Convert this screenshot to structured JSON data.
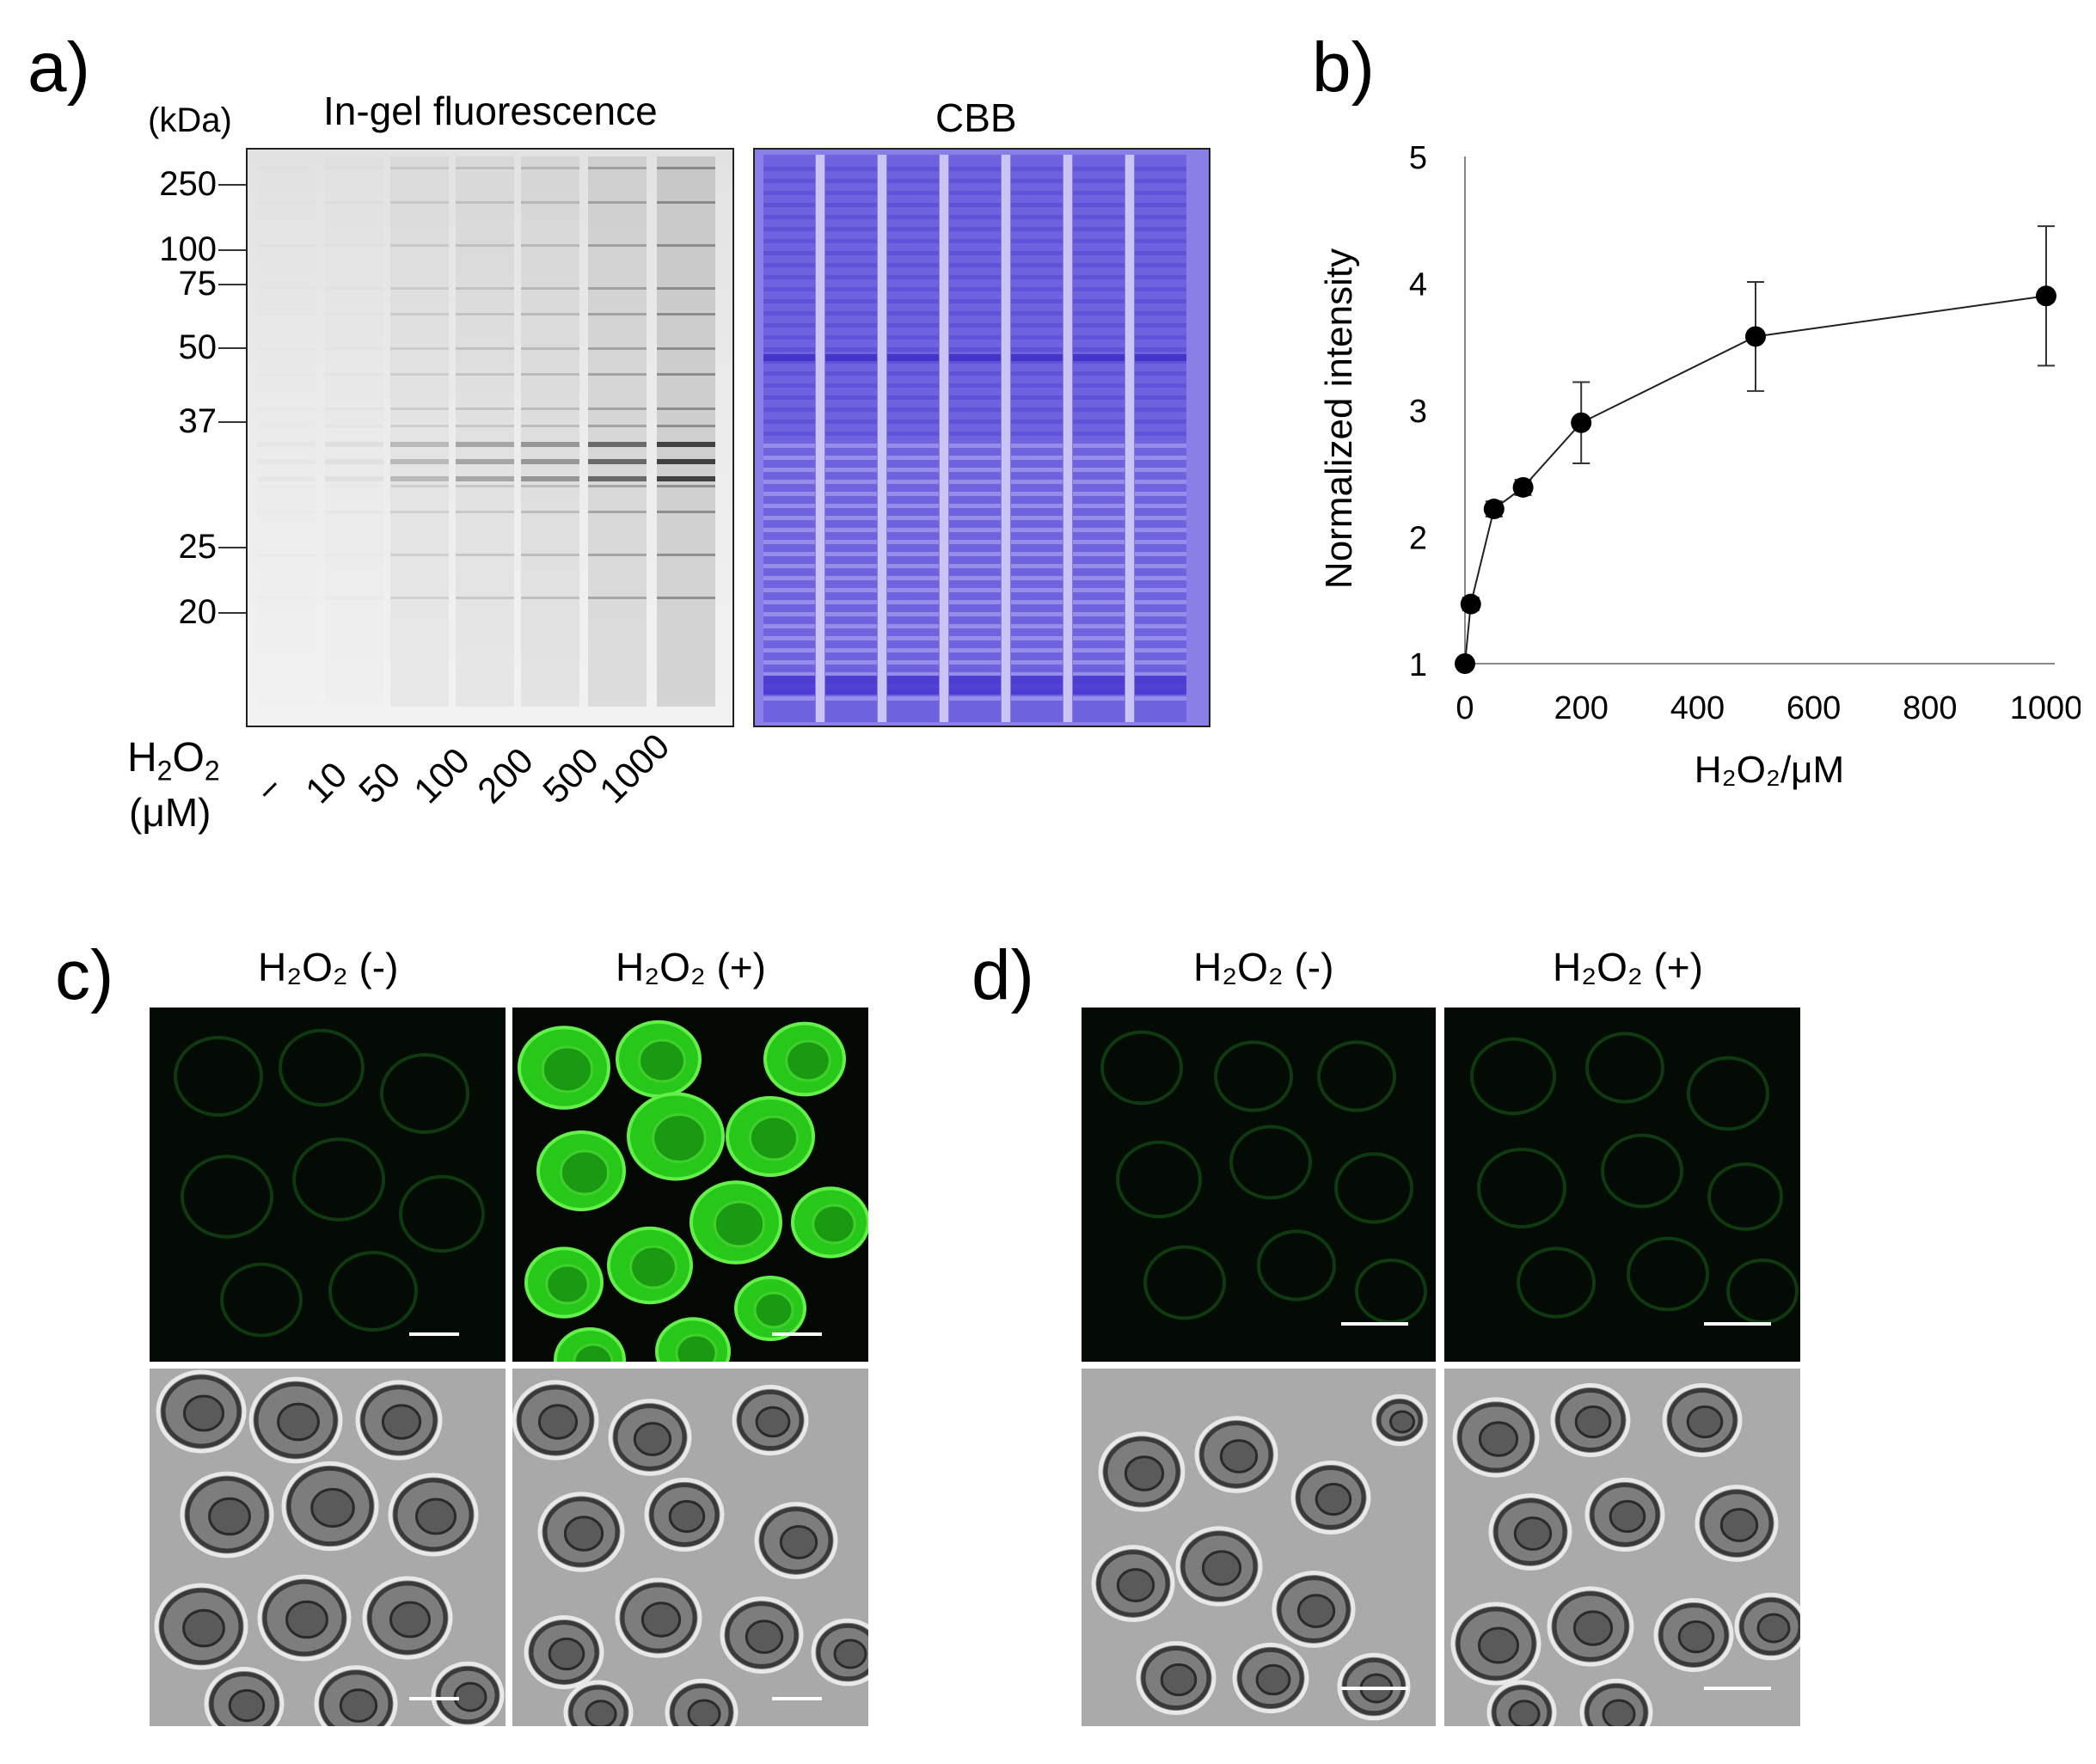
{
  "panel_a": {
    "letter": "a)",
    "kda_label": "(kDa)",
    "title_fluor": "In-gel fluorescence",
    "title_cbb": "CBB",
    "mw_markers": [
      "250",
      "100",
      "75",
      "50",
      "37",
      "25",
      "20"
    ],
    "h2o2_label_1": "H",
    "h2o2_sub_1": "2",
    "h2o2_label_2": "O",
    "h2o2_sub_2": "2",
    "unit_label": "(μM)",
    "lanes": [
      "−",
      "10",
      "50",
      "100",
      "200",
      "500",
      "1000"
    ]
  },
  "panel_b": {
    "letter": "b)",
    "chart_data": {
      "type": "line",
      "x": [
        0,
        10,
        50,
        100,
        200,
        500,
        1000
      ],
      "y": [
        1.0,
        1.47,
        2.22,
        2.39,
        2.9,
        3.58,
        3.9
      ],
      "error": [
        0.0,
        0.05,
        0.06,
        0.06,
        0.32,
        0.43,
        0.55
      ],
      "xlabel": "H₂O₂/μM",
      "ylabel": "Normalized intensity",
      "xlim": [
        0,
        1000
      ],
      "ylim": [
        1,
        5
      ],
      "xticks": [
        "0",
        "200",
        "400",
        "600",
        "800",
        "1000"
      ],
      "yticks": [
        "1",
        "2",
        "3",
        "4",
        "5"
      ],
      "grid": false
    }
  },
  "panel_c": {
    "letter": "c)",
    "col_neg": "H₂O₂ (-)",
    "col_pos": "H₂O₂ (+)"
  },
  "panel_d": {
    "letter": "d)",
    "col_neg": "H₂O₂ (-)",
    "col_pos": "H₂O₂ (+)"
  },
  "colors": {
    "fluor_green": "#2bd11a",
    "cbb_blue": "#7b6fe0",
    "dark_bg": "#050d05"
  }
}
